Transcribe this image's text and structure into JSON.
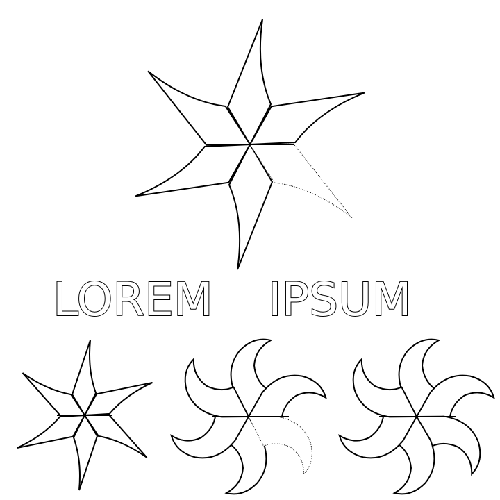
{
  "logo": {
    "word1": "LOREM",
    "word2": "IPSUM",
    "icon": "six-blade-star-outline-icon"
  },
  "variants": [
    {
      "icon": "six-blade-star-small-icon"
    },
    {
      "icon": "six-blade-pinwheel-partial-icon"
    },
    {
      "icon": "six-blade-pinwheel-icon"
    }
  ],
  "colors": {
    "ink": "#000000",
    "background": "#ffffff"
  }
}
